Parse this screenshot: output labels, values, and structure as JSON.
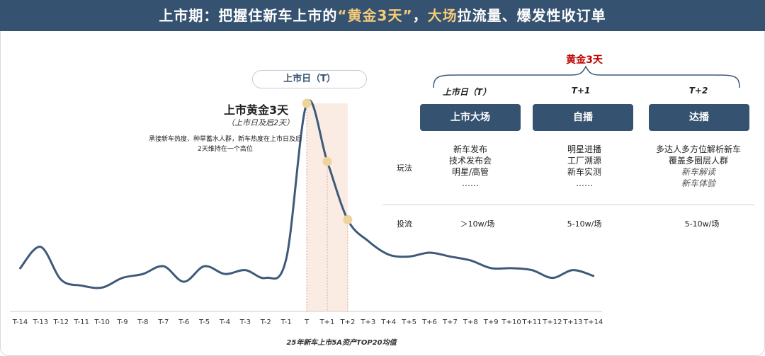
{
  "banner": {
    "prefix": "上市期：把握住新车上市的",
    "quote_open": "“",
    "highlight1": "黄金3天",
    "quote_close": "”",
    "sep": "，",
    "highlight2": "大场",
    "suffix": "拉流量、爆发性收订单"
  },
  "pill_label": "上市日（T）",
  "annotation": {
    "title": "上市黄金3天",
    "subtitle": "（上市日及后2天）",
    "desc": "承接新车热度、种草蓄水人群，新车热度在上市日及后2天维持在一个高位"
  },
  "golden": {
    "title": "黄金3天",
    "columns": [
      {
        "header": "上市日（T）",
        "button": "上市大场",
        "plays": [
          "新车发布",
          "技术发布会",
          "明星/高管",
          "……"
        ],
        "plays_italic": [],
        "flow": "＞10w/场"
      },
      {
        "header": "T+1",
        "button": "自播",
        "plays": [
          "明星进播",
          "工厂溯源",
          "新车实测",
          "……"
        ],
        "plays_italic": [],
        "flow": "5-10w/场"
      },
      {
        "header": "T+2",
        "button": "达播",
        "plays": [
          "多达人多方位解析新车",
          "覆盖多圈层人群"
        ],
        "plays_italic": [
          "新车解读",
          "新车体验"
        ],
        "flow": "5-10w/场"
      }
    ],
    "row_play": "玩法",
    "row_flow": "投流"
  },
  "chart_data": {
    "type": "line",
    "x": [
      "T-14",
      "T-13",
      "T-12",
      "T-11",
      "T-10",
      "T-9",
      "T-8",
      "T-7",
      "T-6",
      "T-5",
      "T-4",
      "T-3",
      "T-2",
      "T-1",
      "T",
      "T+1",
      "T+2",
      "T+3",
      "T+4",
      "T+5",
      "T+6",
      "T+7",
      "T+8",
      "T+9",
      "T+10",
      "T+11",
      "T+12",
      "T+13",
      "T+14"
    ],
    "y": [
      15,
      26,
      9,
      6,
      5,
      10,
      12,
      16,
      8,
      16,
      12,
      14,
      10,
      20,
      100,
      70,
      40,
      29,
      22,
      21,
      23,
      21,
      19,
      15,
      15,
      14,
      10,
      14,
      11
    ],
    "highlight_range": [
      "T",
      "T+2"
    ],
    "highlight_markers": [
      "T",
      "T+1",
      "T+2"
    ],
    "caption": "25年新车上市5A资产TOP20均值",
    "colors": {
      "line": "#3e5a7a",
      "band": "#f6d5c2",
      "marker": "#edd39c",
      "accent": "#365271",
      "red": "#c00000"
    }
  }
}
